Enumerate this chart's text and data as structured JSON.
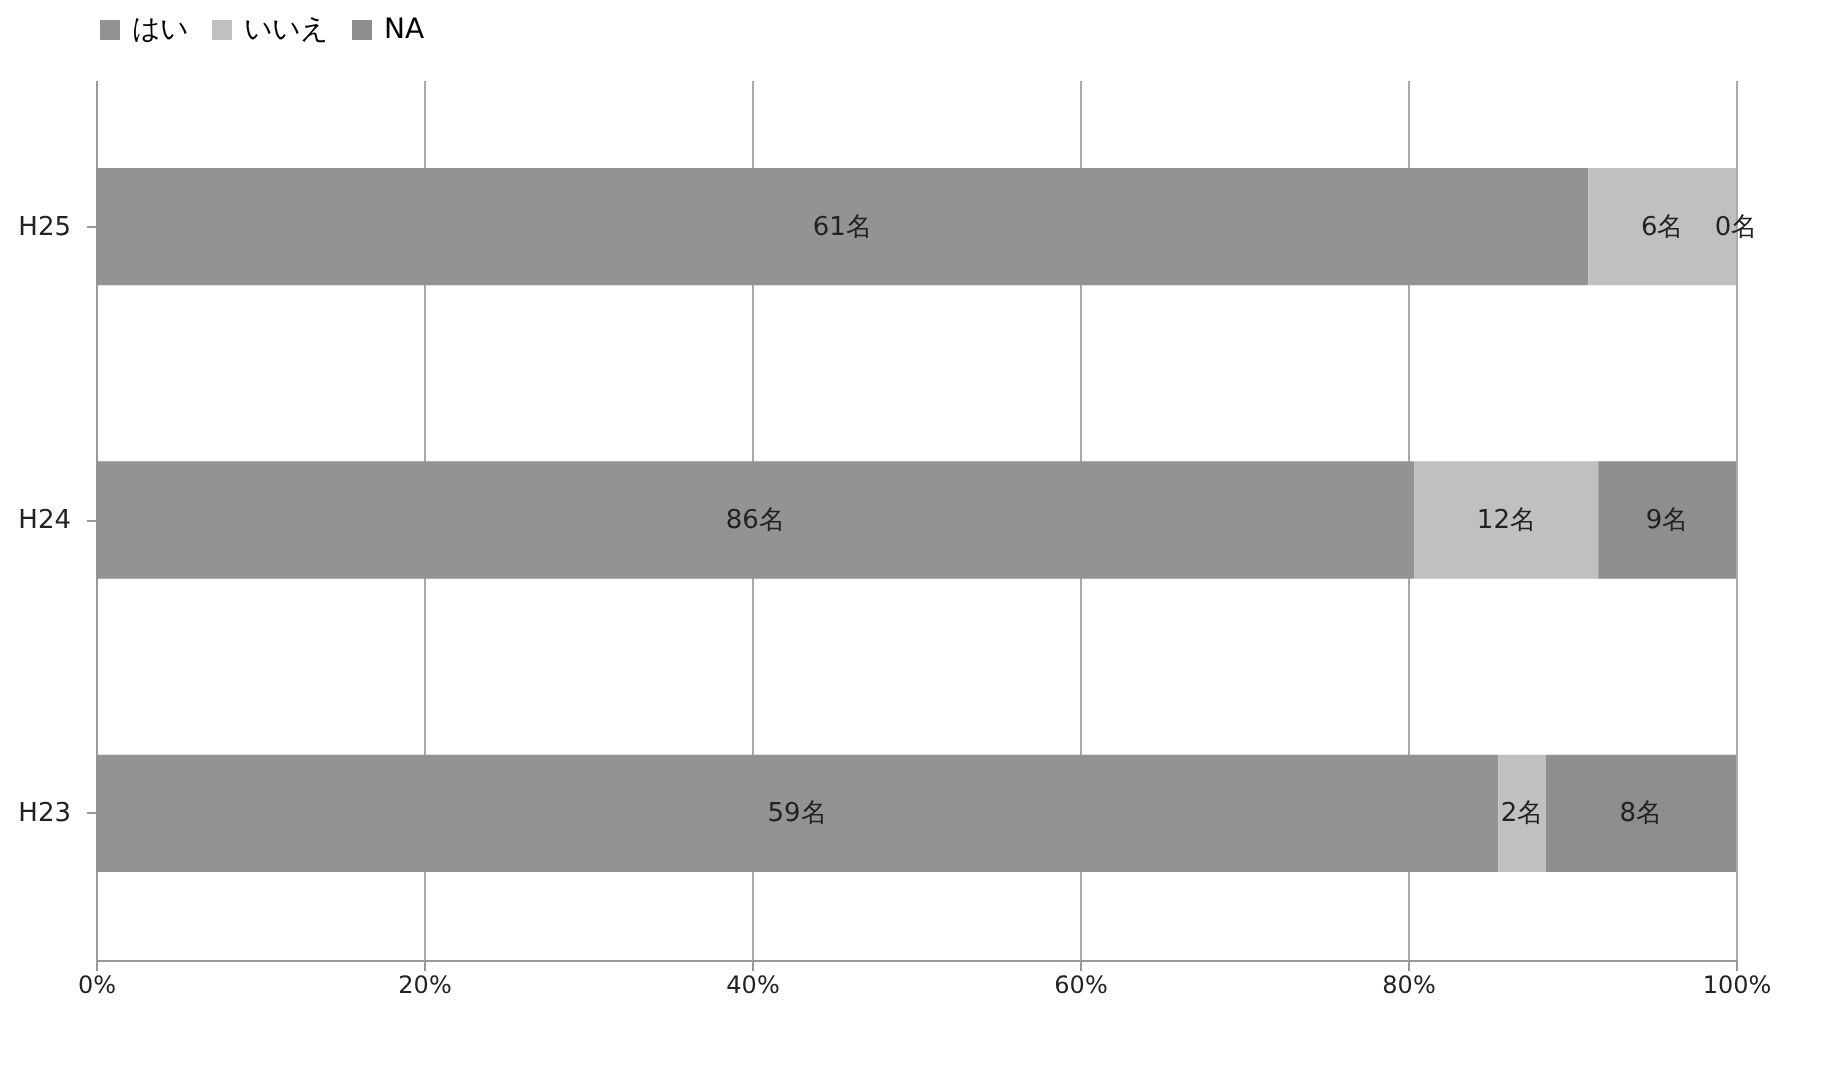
{
  "chart_data": {
    "type": "bar",
    "orientation": "horizontal",
    "stacked": true,
    "categories": [
      "H25",
      "H24",
      "H23"
    ],
    "series": [
      {
        "name": "はい",
        "color": "#939393",
        "values": [
          91.0,
          80.4,
          85.5
        ]
      },
      {
        "name": "いいえ",
        "color": "#c0c0c0",
        "values": [
          9.0,
          11.2,
          2.9
        ]
      },
      {
        "name": "NA",
        "color": "#8e8e8e",
        "values": [
          0,
          8.4,
          11.6
        ]
      }
    ],
    "annotations": [
      "61名",
      "6名",
      "0名",
      "86名",
      "12名",
      "9名",
      "59名",
      "2名",
      "8名"
    ],
    "xlim": [
      0,
      100
    ],
    "xticks": [
      {
        "value": 0,
        "label": "0%"
      },
      {
        "value": 20,
        "label": "20%"
      },
      {
        "value": 40,
        "label": "40%"
      },
      {
        "value": 60,
        "label": "60%"
      },
      {
        "value": 80,
        "label": "80%"
      },
      {
        "value": 100,
        "label": "100%"
      }
    ],
    "grid": "x",
    "legend": "top"
  }
}
